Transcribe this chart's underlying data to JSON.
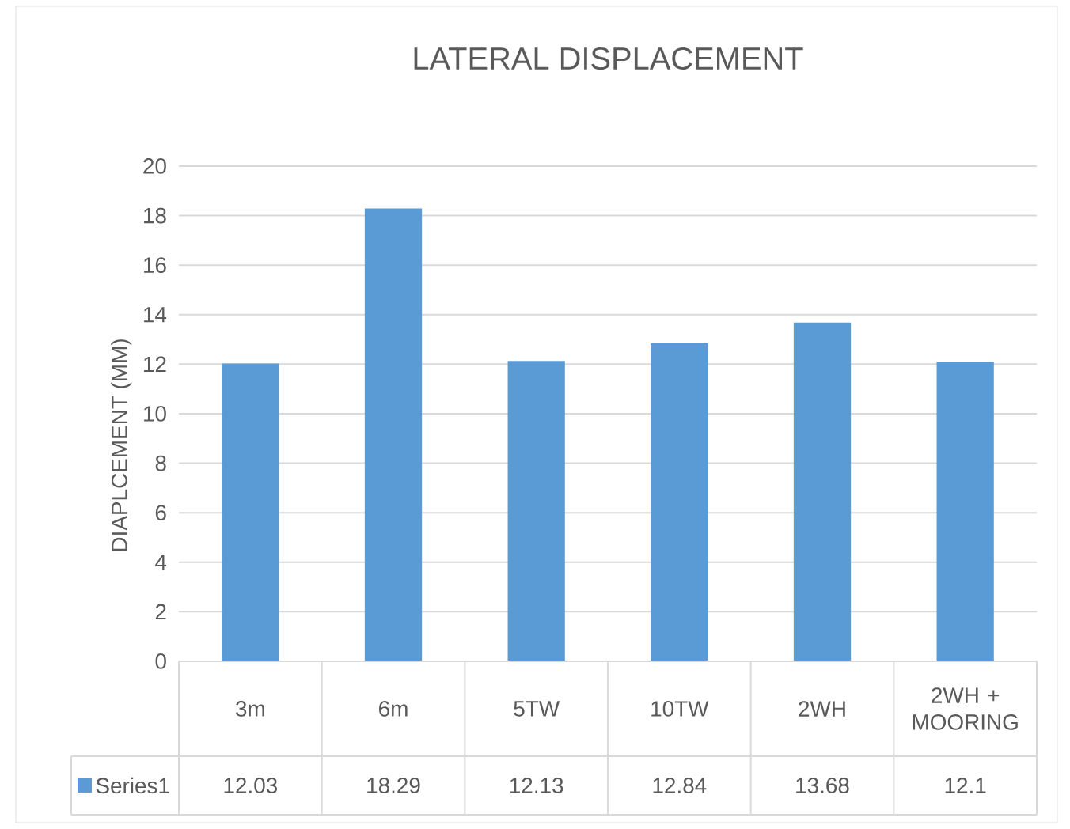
{
  "chart_data": {
    "type": "bar",
    "title": "LATERAL DISPLACEMENT",
    "ylabel": "DIAPLCEMENT (MM)",
    "categories": [
      "3m",
      "6m",
      "5TW",
      "10TW",
      "2WH",
      "2WH + MOORING"
    ],
    "series": [
      {
        "name": "Series1",
        "color": "#5b9bd5",
        "values": [
          12.03,
          18.29,
          12.13,
          12.84,
          13.68,
          12.1
        ]
      }
    ],
    "ylim": [
      0,
      20
    ],
    "yticks": [
      0,
      2,
      4,
      6,
      8,
      10,
      12,
      14,
      16,
      18,
      20
    ],
    "grid": "y",
    "legend": "bottom",
    "data_labels": true
  }
}
